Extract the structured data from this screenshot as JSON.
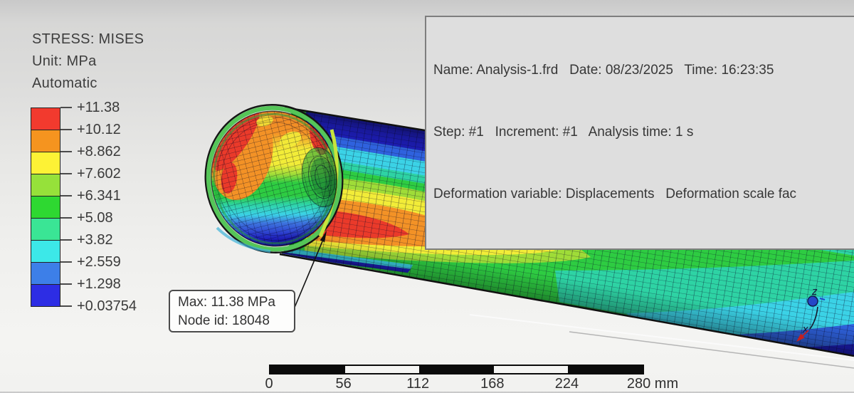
{
  "header": {
    "result_type": "STRESS: MISES",
    "unit": "Unit: MPa",
    "scale_mode": "Automatic"
  },
  "legend": {
    "values": [
      "+11.38",
      "+10.12",
      "+8.862",
      "+7.602",
      "+6.341",
      "+5.08",
      "+3.82",
      "+2.559",
      "+1.298",
      "+0.03754"
    ],
    "block_colors": [
      "#f23a2e",
      "#f5941f",
      "#fdf235",
      "#96e13a",
      "#2ed831",
      "#3ae595",
      "#3ce8e8",
      "#3d7fe8",
      "#2d2de4"
    ]
  },
  "info_box": {
    "line1": "Name: Analysis-1.frd   Date: 08/23/2025   Time: 16:23:35",
    "line2": "Step: #1   Increment: #1   Analysis time: 1 s",
    "line3": "Deformation variable: Displacements   Deformation scale fac"
  },
  "max_annotation": {
    "line1": "Max: 11.38 MPa",
    "line2": "Node id: 18048"
  },
  "scale_bar": {
    "labels": [
      "0",
      "56",
      "112",
      "168",
      "224",
      "280 mm"
    ],
    "segment_colors": [
      "#0b0b0b",
      "#f5f5f3",
      "#0b0b0b",
      "#f5f5f3",
      "#0b0b0b"
    ]
  },
  "triad": {
    "z": "z",
    "x": "x"
  }
}
